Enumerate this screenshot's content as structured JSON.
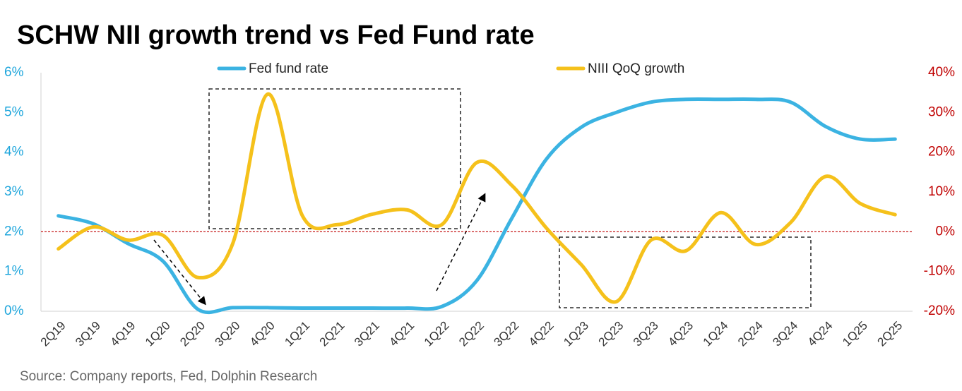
{
  "chart_data": {
    "type": "line",
    "title": "SCHW NII growth trend vs Fed Fund rate",
    "source": "Source: Company reports, Fed, Dolphin Research",
    "categories": [
      "2Q19",
      "3Q19",
      "4Q19",
      "1Q20",
      "2Q20",
      "3Q20",
      "4Q20",
      "1Q21",
      "2Q21",
      "3Q21",
      "4Q21",
      "1Q22",
      "2Q22",
      "3Q22",
      "4Q22",
      "1Q23",
      "2Q23",
      "3Q23",
      "4Q23",
      "1Q24",
      "2Q24",
      "3Q24",
      "4Q24",
      "1Q25",
      "2Q25"
    ],
    "series": [
      {
        "name": "Fed fund rate",
        "color": "#3bb3e2",
        "values": [
          2.4,
          2.2,
          1.7,
          1.26,
          0.05,
          0.09,
          0.09,
          0.08,
          0.08,
          0.08,
          0.08,
          0.12,
          0.77,
          2.33,
          3.83,
          4.63,
          5.0,
          5.26,
          5.33,
          5.33,
          5.33,
          5.26,
          4.65,
          4.33,
          4.33
        ]
      },
      {
        "name": "NIII QoQ growth",
        "color": "#f5c11b",
        "axis": "y2",
        "values": [
          -4.3,
          1.2,
          -2.1,
          -0.9,
          -11.5,
          -3,
          34.6,
          4,
          1.8,
          4.4,
          5.5,
          1.8,
          17.4,
          11.7,
          0.9,
          -8.3,
          -17.6,
          -2.1,
          -4.8,
          4.8,
          -3.2,
          2.3,
          13.9,
          7.1,
          4.3
        ]
      }
    ],
    "ylim": [
      0,
      6
    ],
    "yticks": [
      {
        "value": 0,
        "label": "0%"
      },
      {
        "value": 1,
        "label": "1%"
      },
      {
        "value": 2,
        "label": "2%"
      },
      {
        "value": 3,
        "label": "3%"
      },
      {
        "value": 4,
        "label": "4%"
      },
      {
        "value": 5,
        "label": "5%"
      },
      {
        "value": 6,
        "label": "6%"
      }
    ],
    "y2lim": [
      -20,
      40
    ],
    "y2ticks": [
      {
        "value": -20,
        "label": "-20%"
      },
      {
        "value": -10,
        "label": "-10%"
      },
      {
        "value": 0,
        "label": "0%"
      },
      {
        "value": 10,
        "label": "10%"
      },
      {
        "value": 20,
        "label": "20%"
      },
      {
        "value": 30,
        "label": "30%"
      },
      {
        "value": 40,
        "label": "40%"
      }
    ]
  }
}
